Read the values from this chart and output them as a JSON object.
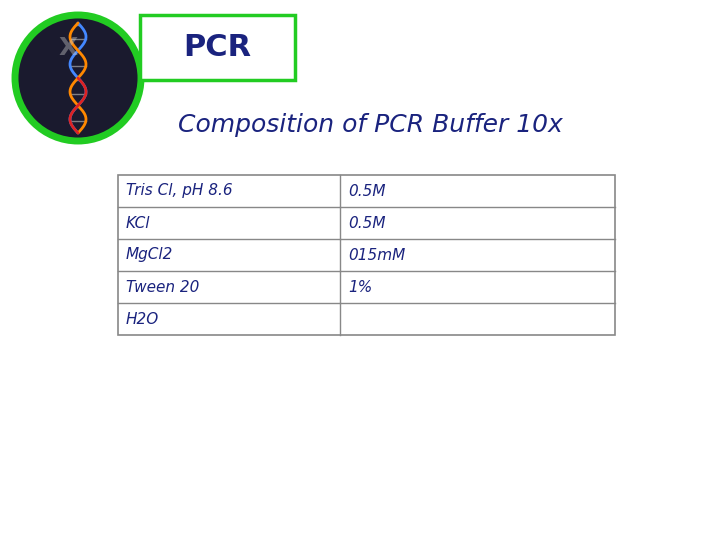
{
  "title": "Composition of PCR Buffer 10x",
  "pcr_label": "PCR",
  "title_color": "#1a237e",
  "title_fontsize": 18,
  "pcr_fontsize": 22,
  "table_rows": [
    [
      "Tris Cl, pH 8.6",
      "0.5M"
    ],
    [
      "KCl",
      "0.5M"
    ],
    [
      "MgCl2",
      "015mM"
    ],
    [
      "Tween 20",
      "1%"
    ],
    [
      "H2O",
      ""
    ]
  ],
  "table_text_color": "#1a237e",
  "table_fontsize": 11,
  "background_color": "#ffffff",
  "box_border_color": "#22cc22",
  "box_fill_color": "#ffffff",
  "circle_bg_color": "#1a1a2e",
  "circle_border_color": "#22cc22",
  "table_border_color": "#888888",
  "fig_width": 7.2,
  "fig_height": 5.4,
  "dpi": 100
}
